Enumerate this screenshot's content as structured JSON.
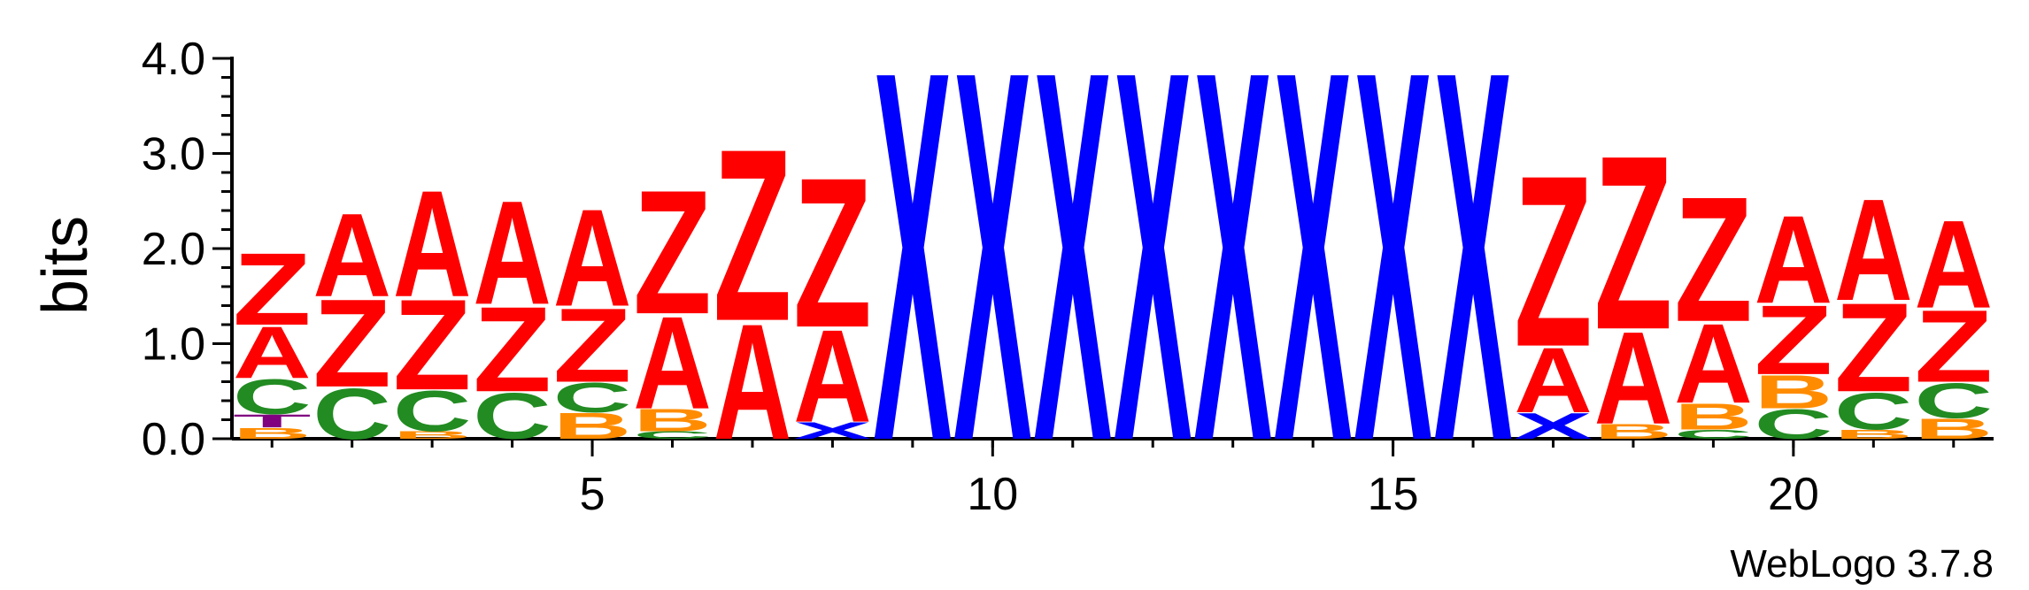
{
  "chart_data": {
    "type": "sequence-logo",
    "ylabel": "bits",
    "ylim": [
      0,
      4.0
    ],
    "yticks": [
      "0.0",
      "1.0",
      "2.0",
      "3.0",
      "4.0"
    ],
    "xlim": [
      0.5,
      22.5
    ],
    "xticks": [
      5,
      10,
      15,
      20
    ],
    "colors": {
      "Z": "#ff0000",
      "A": "#ff0000",
      "X": "#0000ff",
      "C": "#228b22",
      "B": "#ff8c00",
      "T": "#800080"
    },
    "positions": [
      {
        "pos": 1,
        "stack": [
          {
            "letter": "B",
            "h": 0.12
          },
          {
            "letter": "T",
            "h": 0.14
          },
          {
            "letter": "C",
            "h": 0.38
          },
          {
            "letter": "A",
            "h": 0.56
          },
          {
            "letter": "Z",
            "h": 0.78
          }
        ]
      },
      {
        "pos": 2,
        "stack": [
          {
            "letter": "C",
            "h": 0.55
          },
          {
            "letter": "Z",
            "h": 0.95
          },
          {
            "letter": "A",
            "h": 0.9
          }
        ]
      },
      {
        "pos": 3,
        "stack": [
          {
            "letter": "B",
            "h": 0.08
          },
          {
            "letter": "C",
            "h": 0.44
          },
          {
            "letter": "Z",
            "h": 0.98
          },
          {
            "letter": "A",
            "h": 1.15
          }
        ]
      },
      {
        "pos": 4,
        "stack": [
          {
            "letter": "C",
            "h": 0.5
          },
          {
            "letter": "Z",
            "h": 0.92
          },
          {
            "letter": "A",
            "h": 1.12
          }
        ]
      },
      {
        "pos": 5,
        "stack": [
          {
            "letter": "B",
            "h": 0.28
          },
          {
            "letter": "C",
            "h": 0.32
          },
          {
            "letter": "Z",
            "h": 0.8
          },
          {
            "letter": "A",
            "h": 1.05
          }
        ]
      },
      {
        "pos": 6,
        "stack": [
          {
            "letter": "C",
            "h": 0.08
          },
          {
            "letter": "B",
            "h": 0.24
          },
          {
            "letter": "A",
            "h": 1.0
          },
          {
            "letter": "Z",
            "h": 1.34
          }
        ]
      },
      {
        "pos": 7,
        "stack": [
          {
            "letter": "A",
            "h": 1.25
          },
          {
            "letter": "Z",
            "h": 1.86
          }
        ]
      },
      {
        "pos": 8,
        "stack": [
          {
            "letter": "X",
            "h": 0.18
          },
          {
            "letter": "A",
            "h": 1.0
          },
          {
            "letter": "Z",
            "h": 1.62
          }
        ]
      },
      {
        "pos": 9,
        "stack": [
          {
            "letter": "X",
            "h": 4.0
          }
        ]
      },
      {
        "pos": 10,
        "stack": [
          {
            "letter": "X",
            "h": 4.0
          }
        ]
      },
      {
        "pos": 11,
        "stack": [
          {
            "letter": "X",
            "h": 4.0
          }
        ]
      },
      {
        "pos": 12,
        "stack": [
          {
            "letter": "X",
            "h": 4.0
          }
        ]
      },
      {
        "pos": 13,
        "stack": [
          {
            "letter": "X",
            "h": 4.0
          }
        ]
      },
      {
        "pos": 14,
        "stack": [
          {
            "letter": "X",
            "h": 4.0
          }
        ]
      },
      {
        "pos": 15,
        "stack": [
          {
            "letter": "X",
            "h": 4.0
          }
        ]
      },
      {
        "pos": 16,
        "stack": [
          {
            "letter": "X",
            "h": 4.0
          }
        ]
      },
      {
        "pos": 17,
        "stack": [
          {
            "letter": "X",
            "h": 0.28
          },
          {
            "letter": "A",
            "h": 0.7
          },
          {
            "letter": "Z",
            "h": 1.85
          }
        ]
      },
      {
        "pos": 18,
        "stack": [
          {
            "letter": "B",
            "h": 0.16
          },
          {
            "letter": "A",
            "h": 1.0
          },
          {
            "letter": "Z",
            "h": 1.88
          }
        ]
      },
      {
        "pos": 19,
        "stack": [
          {
            "letter": "C",
            "h": 0.1
          },
          {
            "letter": "B",
            "h": 0.28
          },
          {
            "letter": "A",
            "h": 0.86
          },
          {
            "letter": "Z",
            "h": 1.35
          }
        ]
      },
      {
        "pos": 20,
        "stack": [
          {
            "letter": "C",
            "h": 0.32
          },
          {
            "letter": "B",
            "h": 0.36
          },
          {
            "letter": "Z",
            "h": 0.75
          },
          {
            "letter": "A",
            "h": 0.95
          }
        ]
      },
      {
        "pos": 21,
        "stack": [
          {
            "letter": "B",
            "h": 0.1
          },
          {
            "letter": "C",
            "h": 0.4
          },
          {
            "letter": "Z",
            "h": 0.96
          },
          {
            "letter": "A",
            "h": 1.1
          }
        ]
      },
      {
        "pos": 22,
        "stack": [
          {
            "letter": "B",
            "h": 0.22
          },
          {
            "letter": "C",
            "h": 0.38
          },
          {
            "letter": "Z",
            "h": 0.78
          },
          {
            "letter": "A",
            "h": 0.95
          }
        ]
      }
    ]
  },
  "footer": {
    "version_label": "WebLogo 3.7.8"
  }
}
